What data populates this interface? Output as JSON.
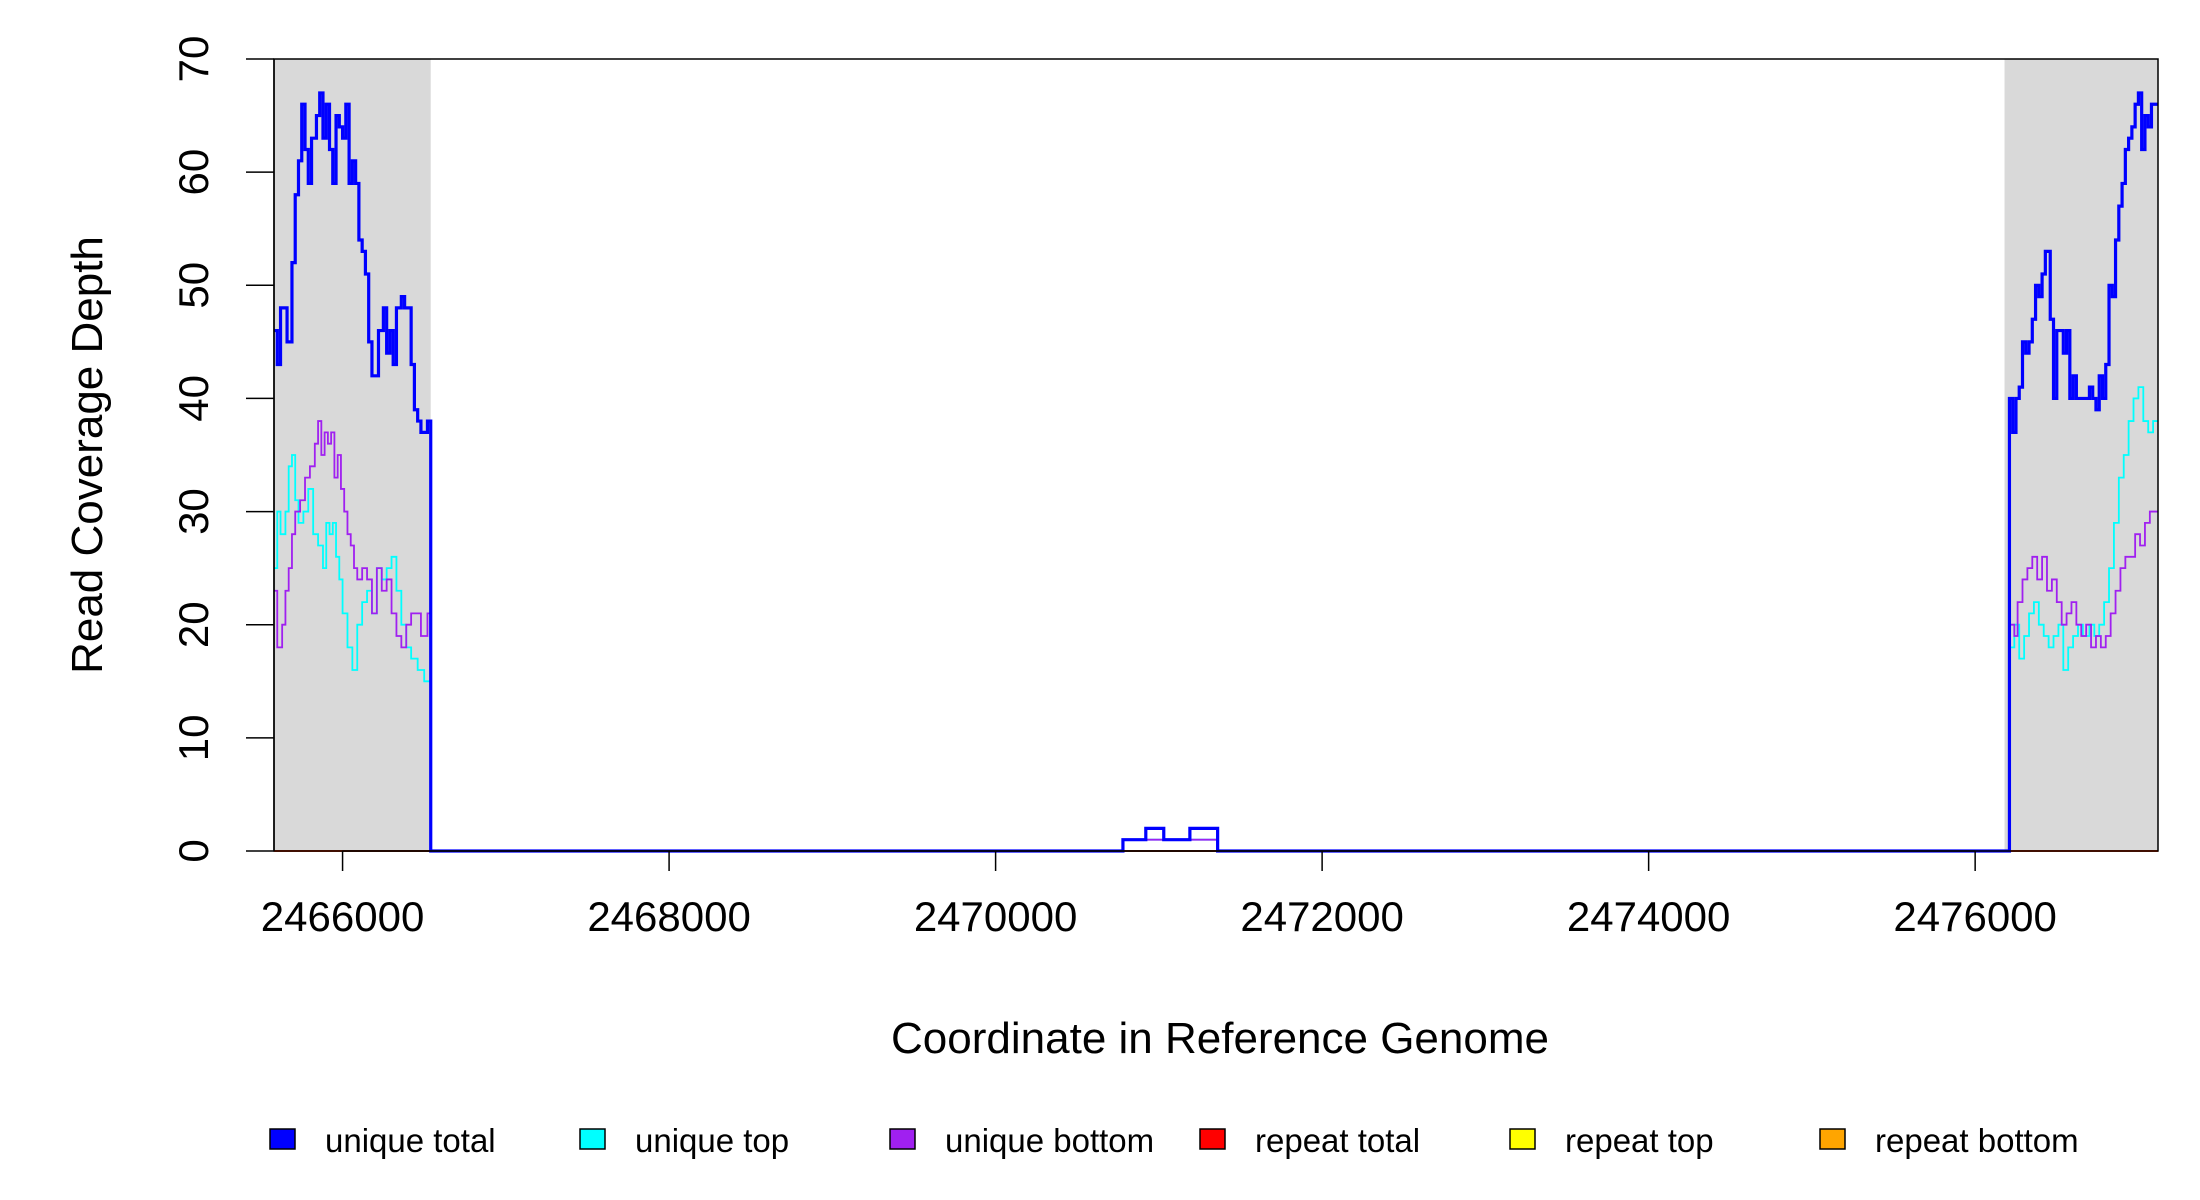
{
  "chart_data": {
    "type": "line",
    "xlabel": "Coordinate in Reference Genome",
    "ylabel": "Read Coverage Depth",
    "xlim": [
      2465580,
      2477120
    ],
    "ylim": [
      0,
      70
    ],
    "x_ticks": [
      "2466000",
      "2468000",
      "2470000",
      "2472000",
      "2474000",
      "2476000"
    ],
    "y_ticks": [
      "0",
      "10",
      "20",
      "30",
      "40",
      "50",
      "60",
      "70"
    ],
    "grid": false,
    "shaded_regions": [
      [
        2465580,
        2466540
      ],
      [
        2476180,
        2477120
      ]
    ],
    "shade_color": "#d9d9d9",
    "legend_position": "bottom",
    "series": [
      {
        "name": "unique total",
        "color": "#0000ff",
        "points": [
          [
            2465580,
            46
          ],
          [
            2465600,
            43
          ],
          [
            2465620,
            48
          ],
          [
            2465660,
            45
          ],
          [
            2465690,
            52
          ],
          [
            2465710,
            58
          ],
          [
            2465730,
            61
          ],
          [
            2465750,
            66
          ],
          [
            2465770,
            62
          ],
          [
            2465790,
            59
          ],
          [
            2465810,
            63
          ],
          [
            2465840,
            65
          ],
          [
            2465860,
            67
          ],
          [
            2465880,
            63
          ],
          [
            2465900,
            66
          ],
          [
            2465920,
            62
          ],
          [
            2465940,
            59
          ],
          [
            2465960,
            65
          ],
          [
            2465980,
            64
          ],
          [
            2466000,
            63
          ],
          [
            2466020,
            66
          ],
          [
            2466040,
            59
          ],
          [
            2466060,
            61
          ],
          [
            2466080,
            59
          ],
          [
            2466100,
            54
          ],
          [
            2466120,
            53
          ],
          [
            2466140,
            51
          ],
          [
            2466160,
            45
          ],
          [
            2466180,
            42
          ],
          [
            2466220,
            46
          ],
          [
            2466250,
            48
          ],
          [
            2466270,
            44
          ],
          [
            2466290,
            46
          ],
          [
            2466310,
            43
          ],
          [
            2466330,
            48
          ],
          [
            2466360,
            49
          ],
          [
            2466380,
            48
          ],
          [
            2466400,
            48
          ],
          [
            2466420,
            43
          ],
          [
            2466440,
            39
          ],
          [
            2466460,
            38
          ],
          [
            2466480,
            37
          ],
          [
            2466520,
            38
          ],
          [
            2466540,
            0
          ],
          [
            2470780,
            0
          ],
          [
            2470780,
            1
          ],
          [
            2470920,
            1
          ],
          [
            2470920,
            2
          ],
          [
            2471030,
            2
          ],
          [
            2471030,
            1
          ],
          [
            2471190,
            1
          ],
          [
            2471190,
            2
          ],
          [
            2471360,
            2
          ],
          [
            2471360,
            0
          ],
          [
            2476200,
            0
          ],
          [
            2476210,
            40
          ],
          [
            2476230,
            37
          ],
          [
            2476250,
            40
          ],
          [
            2476270,
            41
          ],
          [
            2476290,
            45
          ],
          [
            2476310,
            44
          ],
          [
            2476330,
            45
          ],
          [
            2476350,
            47
          ],
          [
            2476370,
            50
          ],
          [
            2476390,
            49
          ],
          [
            2476410,
            51
          ],
          [
            2476430,
            53
          ],
          [
            2476460,
            47
          ],
          [
            2476480,
            40
          ],
          [
            2476500,
            46
          ],
          [
            2476540,
            44
          ],
          [
            2476560,
            46
          ],
          [
            2476580,
            40
          ],
          [
            2476600,
            42
          ],
          [
            2476620,
            40
          ],
          [
            2476700,
            41
          ],
          [
            2476720,
            40
          ],
          [
            2476740,
            39
          ],
          [
            2476760,
            42
          ],
          [
            2476780,
            40
          ],
          [
            2476800,
            43
          ],
          [
            2476820,
            50
          ],
          [
            2476840,
            49
          ],
          [
            2476860,
            54
          ],
          [
            2476880,
            57
          ],
          [
            2476900,
            59
          ],
          [
            2476920,
            62
          ],
          [
            2476940,
            63
          ],
          [
            2476960,
            64
          ],
          [
            2476980,
            66
          ],
          [
            2477000,
            67
          ],
          [
            2477020,
            62
          ],
          [
            2477040,
            65
          ],
          [
            2477060,
            64
          ],
          [
            2477080,
            66
          ],
          [
            2477120,
            66
          ]
        ]
      },
      {
        "name": "unique top",
        "color": "#00ffff",
        "points": [
          [
            2465580,
            25
          ],
          [
            2465600,
            30
          ],
          [
            2465620,
            28
          ],
          [
            2465650,
            30
          ],
          [
            2465670,
            34
          ],
          [
            2465690,
            35
          ],
          [
            2465710,
            31
          ],
          [
            2465730,
            29
          ],
          [
            2465760,
            30
          ],
          [
            2465790,
            32
          ],
          [
            2465820,
            28
          ],
          [
            2465850,
            27
          ],
          [
            2465880,
            25
          ],
          [
            2465900,
            29
          ],
          [
            2465920,
            28
          ],
          [
            2465940,
            29
          ],
          [
            2465960,
            26
          ],
          [
            2465980,
            24
          ],
          [
            2466000,
            21
          ],
          [
            2466030,
            18
          ],
          [
            2466060,
            16
          ],
          [
            2466090,
            20
          ],
          [
            2466120,
            22
          ],
          [
            2466150,
            23
          ],
          [
            2466180,
            21
          ],
          [
            2466210,
            25
          ],
          [
            2466240,
            24
          ],
          [
            2466270,
            25
          ],
          [
            2466300,
            26
          ],
          [
            2466330,
            23
          ],
          [
            2466360,
            20
          ],
          [
            2466390,
            18
          ],
          [
            2466420,
            17
          ],
          [
            2466460,
            16
          ],
          [
            2466500,
            15
          ],
          [
            2466540,
            0
          ],
          [
            2470780,
            0
          ],
          [
            2470780,
            1
          ],
          [
            2471360,
            1
          ],
          [
            2471360,
            0
          ],
          [
            2476200,
            0
          ],
          [
            2476210,
            18
          ],
          [
            2476240,
            20
          ],
          [
            2476270,
            17
          ],
          [
            2476300,
            19
          ],
          [
            2476330,
            21
          ],
          [
            2476360,
            22
          ],
          [
            2476390,
            20
          ],
          [
            2476420,
            19
          ],
          [
            2476450,
            18
          ],
          [
            2476480,
            19
          ],
          [
            2476510,
            20
          ],
          [
            2476540,
            16
          ],
          [
            2476570,
            18
          ],
          [
            2476600,
            19
          ],
          [
            2476630,
            20
          ],
          [
            2476660,
            19
          ],
          [
            2476700,
            20
          ],
          [
            2476730,
            19
          ],
          [
            2476760,
            20
          ],
          [
            2476790,
            22
          ],
          [
            2476820,
            25
          ],
          [
            2476850,
            29
          ],
          [
            2476880,
            33
          ],
          [
            2476910,
            35
          ],
          [
            2476940,
            38
          ],
          [
            2476970,
            40
          ],
          [
            2477000,
            41
          ],
          [
            2477030,
            38
          ],
          [
            2477060,
            37
          ],
          [
            2477090,
            38
          ],
          [
            2477120,
            38
          ]
        ]
      },
      {
        "name": "unique bottom",
        "color": "#a020f0",
        "points": [
          [
            2465580,
            23
          ],
          [
            2465600,
            18
          ],
          [
            2465630,
            20
          ],
          [
            2465650,
            23
          ],
          [
            2465670,
            25
          ],
          [
            2465690,
            28
          ],
          [
            2465710,
            30
          ],
          [
            2465740,
            31
          ],
          [
            2465770,
            33
          ],
          [
            2465800,
            34
          ],
          [
            2465830,
            36
          ],
          [
            2465850,
            38
          ],
          [
            2465870,
            35
          ],
          [
            2465890,
            37
          ],
          [
            2465910,
            36
          ],
          [
            2465930,
            37
          ],
          [
            2465950,
            33
          ],
          [
            2465970,
            35
          ],
          [
            2465990,
            32
          ],
          [
            2466010,
            30
          ],
          [
            2466030,
            28
          ],
          [
            2466050,
            27
          ],
          [
            2466070,
            25
          ],
          [
            2466090,
            24
          ],
          [
            2466120,
            25
          ],
          [
            2466150,
            24
          ],
          [
            2466180,
            21
          ],
          [
            2466210,
            25
          ],
          [
            2466240,
            23
          ],
          [
            2466270,
            24
          ],
          [
            2466300,
            21
          ],
          [
            2466330,
            19
          ],
          [
            2466360,
            18
          ],
          [
            2466390,
            20
          ],
          [
            2466420,
            21
          ],
          [
            2466450,
            21
          ],
          [
            2466480,
            19
          ],
          [
            2466520,
            21
          ],
          [
            2466540,
            0
          ],
          [
            2470780,
            0
          ],
          [
            2470780,
            1
          ],
          [
            2471360,
            1
          ],
          [
            2471360,
            0
          ],
          [
            2476200,
            0
          ],
          [
            2476210,
            20
          ],
          [
            2476240,
            19
          ],
          [
            2476260,
            22
          ],
          [
            2476290,
            24
          ],
          [
            2476320,
            25
          ],
          [
            2476350,
            26
          ],
          [
            2476380,
            24
          ],
          [
            2476410,
            26
          ],
          [
            2476440,
            23
          ],
          [
            2476470,
            24
          ],
          [
            2476500,
            22
          ],
          [
            2476530,
            20
          ],
          [
            2476560,
            21
          ],
          [
            2476590,
            22
          ],
          [
            2476620,
            20
          ],
          [
            2476650,
            19
          ],
          [
            2476680,
            20
          ],
          [
            2476710,
            18
          ],
          [
            2476740,
            19
          ],
          [
            2476770,
            18
          ],
          [
            2476800,
            19
          ],
          [
            2476830,
            21
          ],
          [
            2476860,
            23
          ],
          [
            2476890,
            25
          ],
          [
            2476920,
            26
          ],
          [
            2476950,
            26
          ],
          [
            2476980,
            28
          ],
          [
            2477010,
            27
          ],
          [
            2477040,
            29
          ],
          [
            2477070,
            30
          ],
          [
            2477120,
            30
          ]
        ]
      },
      {
        "name": "repeat total",
        "color": "#ff0000",
        "points": [
          [
            2465580,
            0
          ],
          [
            2477120,
            0
          ]
        ]
      },
      {
        "name": "repeat top",
        "color": "#ffff00",
        "points": [
          [
            2465580,
            0
          ],
          [
            2477120,
            0
          ]
        ]
      },
      {
        "name": "repeat bottom",
        "color": "#ffa500",
        "points": [
          [
            2465580,
            0
          ],
          [
            2477120,
            0
          ]
        ]
      }
    ]
  }
}
